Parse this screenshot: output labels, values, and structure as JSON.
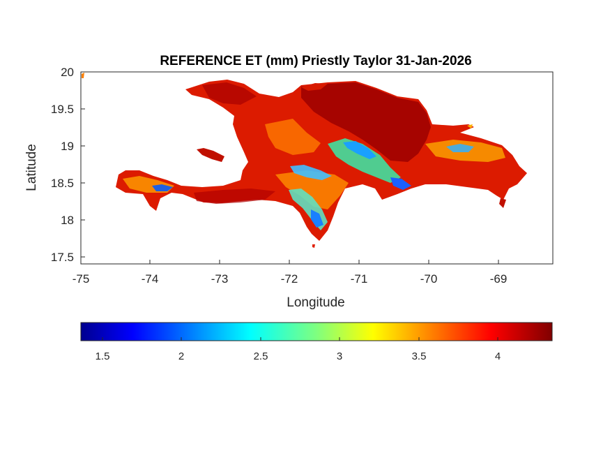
{
  "title": "REFERENCE ET (mm) Priestly Taylor 31-Jan-2026",
  "xlabel": "Longitude",
  "ylabel": "Latitude",
  "x_ticks": [
    "-75",
    "-74",
    "-73",
    "-72",
    "-71",
    "-70",
    "-69"
  ],
  "y_ticks": [
    "20",
    "19.5",
    "19",
    "18.5",
    "18",
    "17.5"
  ],
  "colorbar": {
    "ticks": [
      "1.5",
      "2",
      "2.5",
      "3",
      "3.5",
      "4"
    ],
    "colormap": "jet",
    "range": [
      1.37,
      4.35
    ]
  },
  "map": {
    "region": "Hispaniola",
    "xlim": [
      -75,
      -68.28
    ],
    "ylim": [
      17.4,
      20
    ],
    "dominant_color": "#dd1a00",
    "colors": {
      "low": "#0040ff",
      "mid": "#00e0ff",
      "high": "#ff2200",
      "max": "#8c0000"
    }
  }
}
